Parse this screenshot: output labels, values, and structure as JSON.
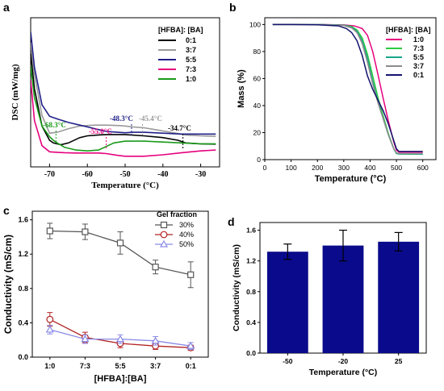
{
  "chart_data": [
    {
      "panel": "a",
      "type": "line",
      "ylabel": "DSC (mW/mg)",
      "xlabel": "Temperature (°C)",
      "xlim": [
        -75,
        -25
      ],
      "x_ticks": [
        "-70",
        "-60",
        "-50",
        "-40",
        "-30"
      ],
      "legend_title": "[HFBA]: [BA]",
      "legend_position": "top-right",
      "series": [
        {
          "name": "0:1",
          "color": "#000000",
          "x": [
            -75,
            -74,
            -72,
            -70,
            -69,
            -67,
            -65,
            -62,
            -60,
            -57,
            -55,
            -52,
            -50,
            -45,
            -40,
            -36,
            -34,
            -30,
            -26
          ],
          "y": [
            7.0,
            5.0,
            2.9,
            2.1,
            1.95,
            1.85,
            1.95,
            2.25,
            2.35,
            2.4,
            2.42,
            2.42,
            2.42,
            2.35,
            2.25,
            2.1,
            1.95,
            1.9,
            1.88
          ]
        },
        {
          "name": "3:7",
          "color": "#9a9a9a",
          "x": [
            -75,
            -74,
            -72,
            -70,
            -68,
            -65,
            -62,
            -58,
            -55,
            -52,
            -50,
            -48,
            -45,
            -42,
            -38,
            -34,
            -30,
            -26
          ],
          "y": [
            7.6,
            5.8,
            3.5,
            2.5,
            2.55,
            2.75,
            2.9,
            2.95,
            2.95,
            2.93,
            2.9,
            2.85,
            2.8,
            2.7,
            2.55,
            2.4,
            2.35,
            2.32
          ]
        },
        {
          "name": "5:5",
          "color": "#20208a",
          "x": [
            -75,
            -74,
            -72,
            -70,
            -68,
            -65,
            -62,
            -60,
            -57,
            -55,
            -52,
            -50,
            -48,
            -45,
            -40,
            -35,
            -30,
            -26
          ],
          "y": [
            8.2,
            6.2,
            4.1,
            3.45,
            3.3,
            3.1,
            2.95,
            2.85,
            2.7,
            2.6,
            2.55,
            2.52,
            2.55,
            2.55,
            2.5,
            2.45,
            2.45,
            2.45
          ]
        },
        {
          "name": "7:3",
          "color": "#e6007e",
          "x": [
            -75,
            -74,
            -72,
            -70,
            -68,
            -66,
            -63,
            -60,
            -57,
            -55,
            -52,
            -50,
            -45,
            -40,
            -35,
            -30,
            -26
          ],
          "y": [
            5.5,
            3.2,
            1.8,
            1.45,
            1.42,
            1.4,
            1.38,
            1.38,
            1.38,
            1.35,
            1.25,
            1.2,
            1.2,
            1.28,
            1.4,
            1.5,
            1.55
          ]
        },
        {
          "name": "1:0",
          "color": "#1a9a1a",
          "x": [
            -75,
            -74,
            -72,
            -70,
            -69,
            -68,
            -66,
            -63,
            -60,
            -57,
            -55,
            -53,
            -50,
            -45,
            -40,
            -35,
            -30,
            -26
          ],
          "y": [
            6.3,
            4.5,
            2.9,
            2.3,
            2.1,
            1.95,
            1.7,
            1.55,
            1.5,
            1.55,
            1.75,
            1.95,
            2.05,
            2.05,
            2.0,
            1.95,
            1.9,
            1.9
          ]
        }
      ],
      "annotations": [
        {
          "text": "-68.3°C",
          "x": -68.3,
          "color": "#1a9a1a"
        },
        {
          "text": "-55.0°C",
          "x": -55.0,
          "color": "#e6007e"
        },
        {
          "text": "-48.3°C",
          "x": -48.3,
          "color": "#20208a"
        },
        {
          "text": "-45.4°C",
          "x": -45.4,
          "color": "#9a9a9a"
        },
        {
          "text": "-34.7°C",
          "x": -34.7,
          "color": "#000000"
        }
      ]
    },
    {
      "panel": "b",
      "type": "line",
      "ylabel": "Mass (%)",
      "xlabel": "Temperature (°C)",
      "xlim": [
        0,
        650
      ],
      "ylim": [
        0,
        105
      ],
      "x_ticks": [
        0,
        100,
        200,
        300,
        400,
        500,
        600
      ],
      "y_ticks": [
        0,
        20,
        40,
        60,
        80,
        100
      ],
      "legend_title": "[HFBA]: [BA]",
      "legend_position": "top-right",
      "series": [
        {
          "name": "1:0",
          "color": "#e6007e",
          "x": [
            30,
            100,
            200,
            300,
            340,
            370,
            390,
            410,
            430,
            450,
            470,
            490,
            500,
            510,
            520,
            600
          ],
          "y": [
            100,
            100,
            100,
            99.7,
            99,
            97,
            92,
            80,
            63,
            45,
            28,
            13,
            7,
            5.5,
            5.5,
            5.5
          ]
        },
        {
          "name": "7:3",
          "color": "#2ecc40",
          "x": [
            30,
            100,
            200,
            300,
            330,
            350,
            370,
            390,
            410,
            430,
            450,
            470,
            490,
            500,
            510,
            600
          ],
          "y": [
            100,
            100,
            100,
            99.5,
            98.5,
            96,
            90,
            78,
            62,
            46,
            32,
            19,
            8,
            4.5,
            4.2,
            4
          ]
        },
        {
          "name": "5:5",
          "color": "#17a589",
          "x": [
            30,
            100,
            200,
            300,
            330,
            350,
            370,
            390,
            410,
            430,
            450,
            470,
            490,
            500,
            510,
            600
          ],
          "y": [
            100,
            100,
            100,
            99.5,
            98,
            95,
            88,
            75,
            58,
            43,
            30,
            18,
            8,
            4.5,
            4.2,
            4
          ]
        },
        {
          "name": "3:7",
          "color": "#8c8c8c",
          "x": [
            30,
            100,
            200,
            300,
            330,
            350,
            370,
            390,
            410,
            430,
            450,
            470,
            490,
            500,
            510,
            600
          ],
          "y": [
            100,
            100,
            100,
            99.3,
            97.5,
            94,
            86,
            72,
            56,
            42,
            30,
            18,
            8,
            5,
            4.5,
            4.5
          ]
        },
        {
          "name": "0:1",
          "color": "#14146e",
          "x": [
            30,
            100,
            200,
            280,
            310,
            330,
            350,
            370,
            390,
            410,
            430,
            450,
            470,
            490,
            500,
            510,
            600
          ],
          "y": [
            100,
            100,
            99.8,
            99,
            97,
            94,
            88,
            77,
            62,
            52,
            44,
            36,
            26,
            14,
            8,
            6,
            6
          ]
        }
      ]
    },
    {
      "panel": "c",
      "type": "line",
      "ylabel": "Conductivity (mS/cm)",
      "xlabel": "[HFBA]:[BA]",
      "categories": [
        "1:0",
        "7:3",
        "5:5",
        "3:7",
        "0:1"
      ],
      "ylim": [
        0,
        1.7
      ],
      "y_ticks": [
        "0.0",
        "0.4",
        "0.8",
        "1.2",
        "1.6"
      ],
      "legend_title": "Gel fraction",
      "legend_position": "top-right",
      "series": [
        {
          "name": "30%",
          "color": "#555555",
          "marker": "square",
          "values": [
            1.47,
            1.46,
            1.33,
            1.05,
            0.96
          ],
          "errors": [
            0.09,
            0.09,
            0.13,
            0.08,
            0.15
          ]
        },
        {
          "name": "40%",
          "color": "#b22222",
          "marker": "circle",
          "values": [
            0.44,
            0.23,
            0.16,
            0.13,
            0.11
          ],
          "errors": [
            0.08,
            0.06,
            0.05,
            0.04,
            0.03
          ]
        },
        {
          "name": "50%",
          "color": "#8a8ae6",
          "marker": "triangle",
          "values": [
            0.32,
            0.21,
            0.21,
            0.19,
            0.13
          ],
          "errors": [
            0.05,
            0.05,
            0.05,
            0.05,
            0.04
          ]
        }
      ]
    },
    {
      "panel": "d",
      "type": "bar",
      "ylabel": "Conductivity (mS/cm)",
      "xlabel": "Temperature (°C)",
      "categories": [
        "-50",
        "-20",
        "25"
      ],
      "values": [
        1.32,
        1.4,
        1.45
      ],
      "errors": [
        0.1,
        0.2,
        0.12
      ],
      "ylim": [
        0,
        1.7
      ],
      "y_ticks": [
        "0.0",
        "0.4",
        "0.8",
        "1.2",
        "1.6"
      ],
      "bar_color": "#0a0a8c"
    }
  ]
}
